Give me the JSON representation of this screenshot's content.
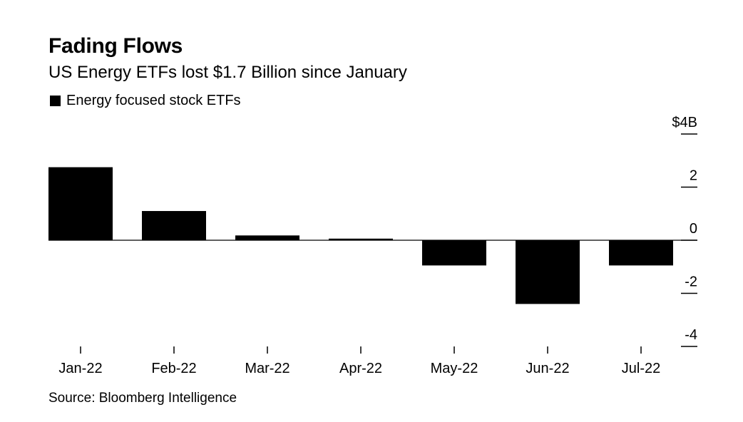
{
  "title": "Fading Flows",
  "subtitle": "US Energy ETFs lost $1.7 Billion since January",
  "legend": {
    "label": "Energy focused stock ETFs"
  },
  "source": "Source: Bloomberg Intelligence",
  "colors": {
    "bar": "#000000",
    "axis": "#000000",
    "background": "#ffffff"
  },
  "chart_data": {
    "type": "bar",
    "title": "Fading Flows",
    "subtitle": "US Energy ETFs lost $1.7 Billion since January",
    "categories": [
      "Jan-22",
      "Feb-22",
      "Mar-22",
      "Apr-22",
      "May-22",
      "Jun-22",
      "Jul-22"
    ],
    "series": [
      {
        "name": "Energy focused stock ETFs",
        "values": [
          2.75,
          1.1,
          0.18,
          0.06,
          -0.95,
          -2.4,
          -0.95
        ]
      }
    ],
    "ylim": [
      -4,
      4
    ],
    "yticks": [
      4,
      2,
      0,
      -2,
      -4
    ],
    "ytick_labels": [
      "$4B",
      "2",
      "0",
      "-2",
      "-4"
    ],
    "y_axis_position": "right",
    "grid": false,
    "legend_position": "top-left",
    "xlabel": "",
    "ylabel": ""
  }
}
